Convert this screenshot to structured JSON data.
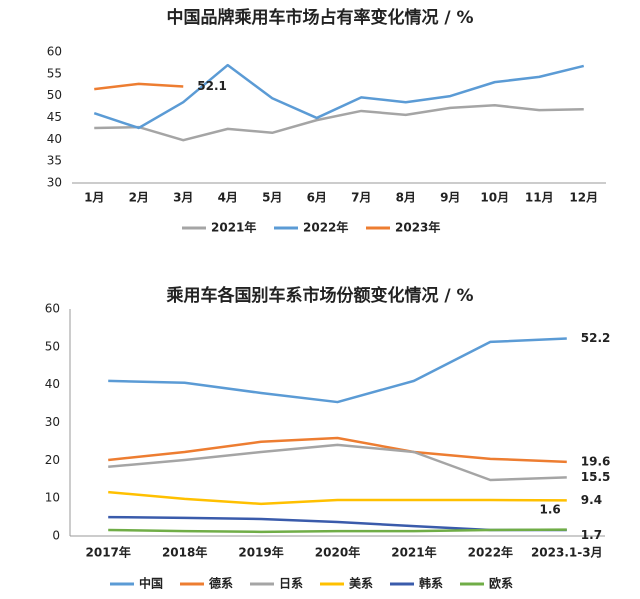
{
  "chart_data": [
    {
      "type": "line",
      "title": "中国品牌乘用车市场占有率变化情况 / %",
      "categories": [
        "1月",
        "2月",
        "3月",
        "4月",
        "5月",
        "6月",
        "7月",
        "8月",
        "9月",
        "10月",
        "11月",
        "12月"
      ],
      "ylim": [
        30,
        60
      ],
      "yticks": [
        30,
        35,
        40,
        45,
        50,
        55,
        60
      ],
      "grid": false,
      "y_axis_line": false,
      "legend": "bottom",
      "series": [
        {
          "name": "2021年",
          "color": "#a5a5a5",
          "values": [
            42.6,
            42.8,
            39.8,
            42.4,
            41.5,
            44.4,
            46.5,
            45.6,
            47.2,
            47.8,
            46.7,
            46.9
          ]
        },
        {
          "name": "2022年",
          "color": "#5b9bd5",
          "values": [
            46.0,
            42.6,
            48.5,
            57.0,
            49.4,
            44.9,
            49.6,
            48.5,
            49.9,
            53.1,
            54.3,
            56.8
          ]
        },
        {
          "name": "2023年",
          "color": "#ed7d31",
          "values": [
            51.5,
            52.7,
            52.1,
            null,
            null,
            null,
            null,
            null,
            null,
            null,
            null,
            null
          ],
          "label_last": true
        }
      ]
    },
    {
      "type": "line",
      "title": "乘用车各国别车系市场份额变化情况 / %",
      "categories": [
        "2017年",
        "2018年",
        "2019年",
        "2020年",
        "2021年",
        "2022年",
        "2023.1-3月"
      ],
      "ylim": [
        0,
        60
      ],
      "yticks": [
        0,
        10,
        20,
        30,
        40,
        50,
        60
      ],
      "grid": false,
      "y_axis_line": true,
      "legend": "bottom",
      "series": [
        {
          "name": "中国",
          "color": "#5b9bd5",
          "values": [
            41.0,
            40.5,
            37.8,
            35.4,
            41.0,
            51.3,
            52.2
          ],
          "label_last": true
        },
        {
          "name": "德系",
          "color": "#ed7d31",
          "values": [
            20.1,
            22.2,
            24.9,
            25.9,
            22.2,
            20.4,
            19.6
          ],
          "label_last": true
        },
        {
          "name": "日系",
          "color": "#a5a5a5",
          "values": [
            18.3,
            20.1,
            22.2,
            24.1,
            22.2,
            14.8,
            15.5
          ],
          "label_last": true
        },
        {
          "name": "美系",
          "color": "#ffc000",
          "values": [
            11.6,
            9.8,
            8.5,
            9.5,
            9.5,
            9.5,
            9.4
          ],
          "label_last": true
        },
        {
          "name": "韩系",
          "color": "#3a5bab",
          "values": [
            5.0,
            4.8,
            4.5,
            3.7,
            2.6,
            1.6,
            1.6
          ],
          "label_last": true
        },
        {
          "name": "欧系",
          "color": "#70ad47",
          "values": [
            1.6,
            1.3,
            1.1,
            1.3,
            1.3,
            1.6,
            1.7
          ],
          "label_last": true
        }
      ]
    }
  ]
}
